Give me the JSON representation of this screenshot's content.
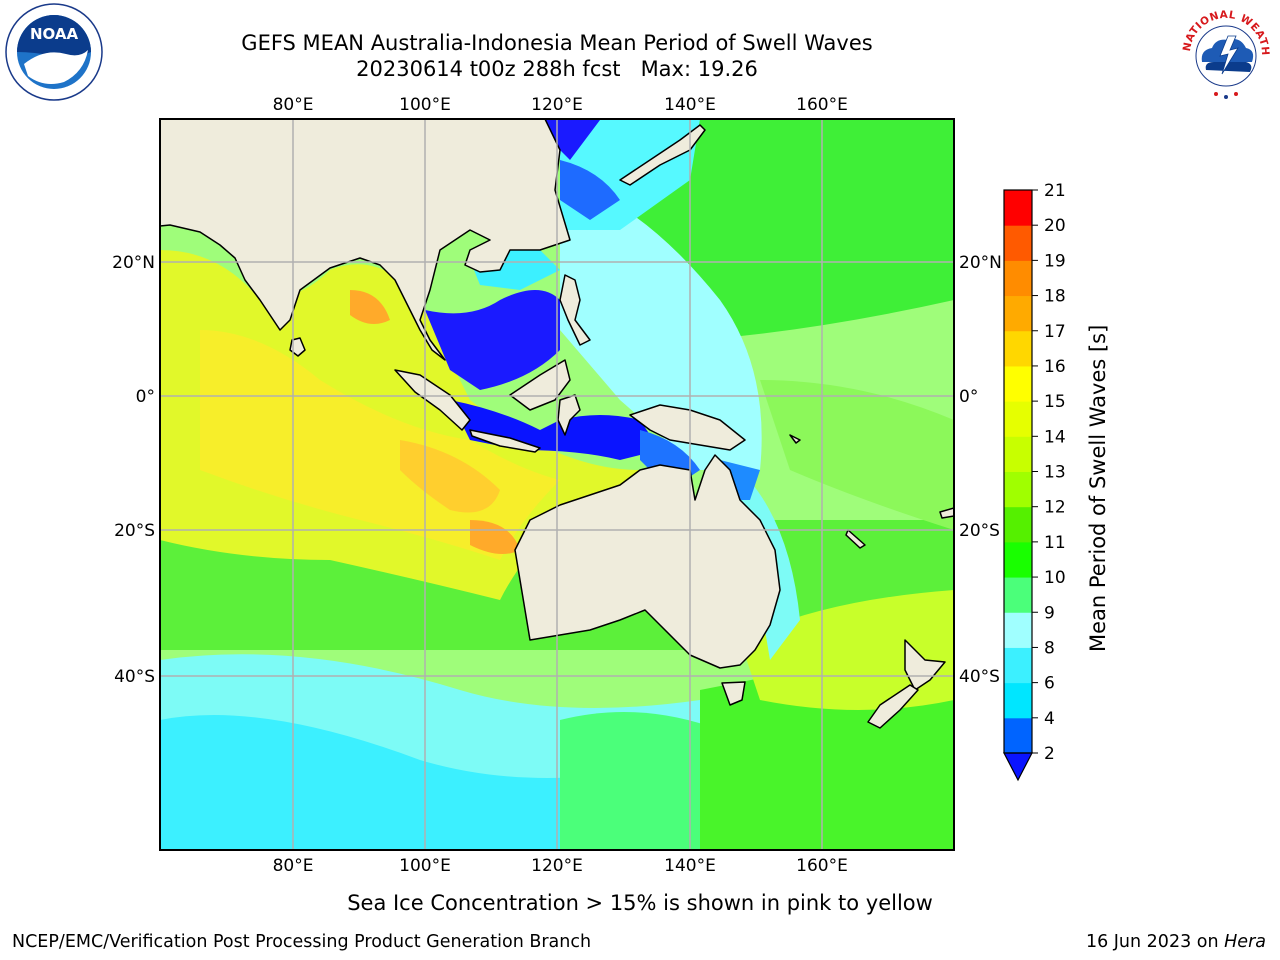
{
  "header": {
    "title_line1": "GEFS MEAN Australia-Indonesia Mean Period of Swell Waves",
    "title_line2": "20230614 t00z 288h fcst   Max: 19.26"
  },
  "map": {
    "lon_labels": [
      "80°E",
      "100°E",
      "120°E",
      "140°E",
      "160°E"
    ],
    "lat_labels": [
      "20°N",
      "0°",
      "20°S",
      "40°S"
    ],
    "colors": {
      "land": "#efecdc",
      "grid": "#b0b0b0",
      "coast": "#000000"
    }
  },
  "colorbar": {
    "title": "Mean Period of Swell Waves [s]",
    "ticks": [
      "2",
      "4",
      "6",
      "8",
      "9",
      "10",
      "11",
      "12",
      "13",
      "14",
      "15",
      "16",
      "17",
      "18",
      "19",
      "20",
      "21"
    ],
    "colors": [
      "#0064ff",
      "#00e6ff",
      "#3cf0ff",
      "#a0ffff",
      "#4bff7a",
      "#19ff00",
      "#55f000",
      "#a0ff00",
      "#c8ff00",
      "#e6ff00",
      "#ffff00",
      "#ffd700",
      "#ffaa00",
      "#ff8c00",
      "#ff5a00",
      "#ff2d00",
      "#ff0000"
    ],
    "under_color": "#0a14ff"
  },
  "footer": {
    "note": "Sea Ice Concentration > 15% is shown in pink to yellow",
    "left": "NCEP/EMC/Verification Post Processing Product Generation Branch",
    "right_date": "16 Jun 2023 on ",
    "right_host": "Hera"
  },
  "logos": {
    "noaa_text": "NOAA",
    "nws_text": "NATIONAL WEATHER SERVICE"
  }
}
